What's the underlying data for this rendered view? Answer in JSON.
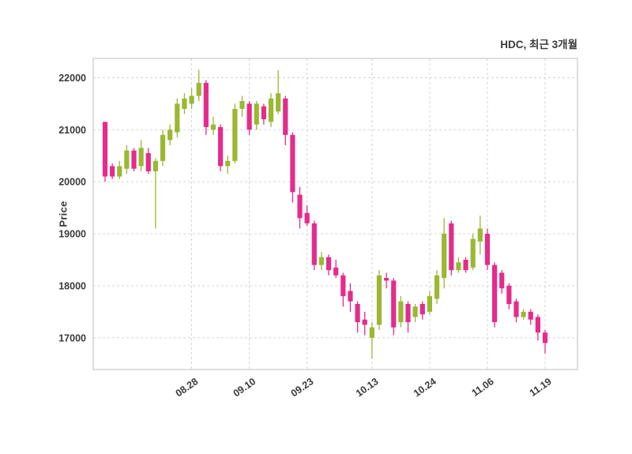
{
  "header": {
    "title": "HDC, 최근 3개월"
  },
  "chart_data": {
    "type": "candlestick",
    "title": "HDC, 최근 3개월",
    "xlabel": "",
    "ylabel": "Price",
    "yticks": [
      17000,
      18000,
      19000,
      20000,
      21000,
      22000
    ],
    "ylim": [
      16390,
      22370
    ],
    "grid": "dashed",
    "legend": "none",
    "colors": {
      "up": "#9ab832",
      "down": "#e52b8c",
      "grid": "#cfcfcf",
      "frame": "#c9c9c9",
      "axis_text": "#3a3a3a",
      "background": "#ffffff"
    },
    "x_tick_labels": [
      {
        "index": 12,
        "label": "08.28"
      },
      {
        "index": 20,
        "label": "09.10"
      },
      {
        "index": 28,
        "label": "09.23"
      },
      {
        "index": 37,
        "label": "10.13"
      },
      {
        "index": 45,
        "label": "10.24"
      },
      {
        "index": 53,
        "label": "11.06"
      },
      {
        "index": 61,
        "label": "11.19"
      }
    ],
    "ohlc_note": "each candle is [open, high, low, close]",
    "candles": [
      [
        21150,
        21150,
        20000,
        20100
      ],
      [
        20300,
        20350,
        20050,
        20100
      ],
      [
        20100,
        20400,
        20050,
        20300
      ],
      [
        20250,
        20700,
        20150,
        20600
      ],
      [
        20600,
        20650,
        20200,
        20250
      ],
      [
        20300,
        20800,
        20200,
        20650
      ],
      [
        20550,
        20650,
        20150,
        20200
      ],
      [
        20200,
        20450,
        19100,
        20400
      ],
      [
        20400,
        21000,
        20300,
        20900
      ],
      [
        20800,
        21100,
        20700,
        21000
      ],
      [
        20950,
        21600,
        20850,
        21500
      ],
      [
        21400,
        21700,
        21300,
        21600
      ],
      [
        21500,
        21800,
        21400,
        21650
      ],
      [
        21650,
        22150,
        21550,
        21900
      ],
      [
        21900,
        21950,
        20900,
        21050
      ],
      [
        21000,
        21250,
        20900,
        21100
      ],
      [
        21050,
        21100,
        20200,
        20300
      ],
      [
        20300,
        20500,
        20150,
        20400
      ],
      [
        20400,
        21500,
        20350,
        21400
      ],
      [
        21400,
        21650,
        21250,
        21550
      ],
      [
        21500,
        21550,
        20900,
        21000
      ],
      [
        21100,
        21550,
        21000,
        21500
      ],
      [
        21450,
        21500,
        21100,
        21200
      ],
      [
        21150,
        21700,
        21050,
        21600
      ],
      [
        21350,
        22150,
        21300,
        21700
      ],
      [
        21600,
        21650,
        20700,
        20900
      ],
      [
        20900,
        20950,
        19600,
        19800
      ],
      [
        19750,
        19900,
        19100,
        19300
      ],
      [
        19400,
        19550,
        19150,
        19200
      ],
      [
        19200,
        19250,
        18300,
        18400
      ],
      [
        18400,
        18650,
        18300,
        18550
      ],
      [
        18550,
        18600,
        18200,
        18300
      ],
      [
        18350,
        18500,
        18150,
        18200
      ],
      [
        18200,
        18250,
        17600,
        17800
      ],
      [
        17900,
        18050,
        17500,
        17700
      ],
      [
        17650,
        17700,
        17100,
        17300
      ],
      [
        17350,
        17500,
        17050,
        17250
      ],
      [
        17000,
        17300,
        16600,
        17200
      ],
      [
        17250,
        18300,
        17150,
        18200
      ],
      [
        18150,
        18250,
        17950,
        18100
      ],
      [
        18100,
        18150,
        17050,
        17200
      ],
      [
        17300,
        17800,
        17200,
        17700
      ],
      [
        17650,
        17700,
        17100,
        17300
      ],
      [
        17400,
        17650,
        17300,
        17600
      ],
      [
        17650,
        17700,
        17350,
        17450
      ],
      [
        17500,
        17900,
        17450,
        17800
      ],
      [
        17750,
        18300,
        17650,
        18200
      ],
      [
        18150,
        19300,
        17950,
        19000
      ],
      [
        19200,
        19250,
        18200,
        18300
      ],
      [
        18300,
        18550,
        18250,
        18450
      ],
      [
        18500,
        18550,
        18250,
        18300
      ],
      [
        18350,
        19000,
        18300,
        18900
      ],
      [
        18850,
        19350,
        18600,
        19100
      ],
      [
        19000,
        19100,
        18300,
        18400
      ],
      [
        18400,
        18450,
        17200,
        17300
      ],
      [
        18250,
        18300,
        17850,
        17950
      ],
      [
        18000,
        18050,
        17550,
        17650
      ],
      [
        17700,
        17750,
        17300,
        17400
      ],
      [
        17400,
        17550,
        17350,
        17500
      ],
      [
        17500,
        17550,
        17250,
        17350
      ],
      [
        17400,
        17450,
        16950,
        17100
      ],
      [
        17100,
        17150,
        16700,
        16900
      ]
    ]
  }
}
